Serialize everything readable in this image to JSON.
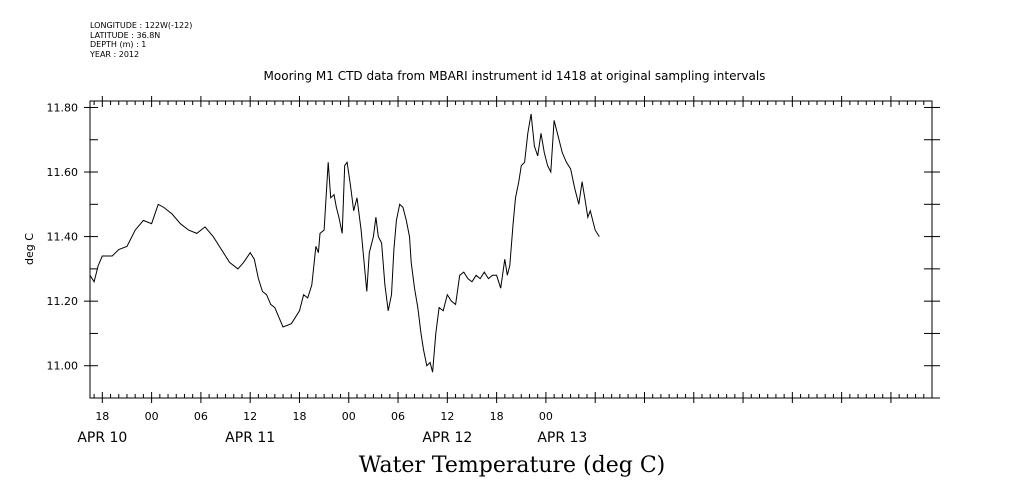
{
  "meta": {
    "longitude": "LONGITUDE : 122W(-122)",
    "latitude": "LATITUDE : 36.8N",
    "depth": "DEPTH (m) : 1",
    "year": "YEAR : 2012"
  },
  "chart_data": {
    "type": "line",
    "title": "Mooring M1 CTD data from MBARI instrument id 1418 at original sampling intervals",
    "ylabel": "deg C",
    "bottom_label": "Water Temperature (deg C)",
    "xlim_hours": [
      -7.5,
      95.0
    ],
    "ylim": [
      10.9,
      11.82
    ],
    "y_ticks": [
      {
        "value": 11.0,
        "label": "11.00"
      },
      {
        "value": 11.2,
        "label": "11.20"
      },
      {
        "value": 11.4,
        "label": "11.40"
      },
      {
        "value": 11.6,
        "label": "11.60"
      },
      {
        "value": 11.8,
        "label": "11.80"
      }
    ],
    "x_ticks": [
      {
        "hour": -6,
        "label": "18"
      },
      {
        "hour": 0,
        "label": "00"
      },
      {
        "hour": 6,
        "label": "06"
      },
      {
        "hour": 12,
        "label": "12"
      },
      {
        "hour": 18,
        "label": "18"
      },
      {
        "hour": 24,
        "label": "00"
      },
      {
        "hour": 30,
        "label": "06"
      },
      {
        "hour": 36,
        "label": "12"
      },
      {
        "hour": 42,
        "label": "18"
      },
      {
        "hour": 48,
        "label": "00"
      }
    ],
    "date_labels": [
      {
        "hour": -6,
        "label": "APR 10"
      },
      {
        "hour": 12,
        "label": "APR 11"
      },
      {
        "hour": 36,
        "label": "APR 12"
      },
      {
        "hour": 50,
        "label": "APR 13"
      }
    ],
    "series": [
      {
        "color": "#000000",
        "x": [
          -7.5,
          -7.0,
          -6.5,
          -6.0,
          -5.5,
          -4.8,
          -4.0,
          -3.0,
          -2.0,
          -1.0,
          0.0,
          0.8,
          1.5,
          2.5,
          3.5,
          4.5,
          5.5,
          6.5,
          7.5,
          8.5,
          9.5,
          10.5,
          11.2,
          12.0,
          12.5,
          13.0,
          13.5,
          14.0,
          14.5,
          15.0,
          15.5,
          16.0,
          17.0,
          17.5,
          18.0,
          18.5,
          19.0,
          19.5,
          20.0,
          20.3,
          20.5,
          21.0,
          21.5,
          21.8,
          22.2,
          22.5,
          22.8,
          23.2,
          23.5,
          23.8,
          24.2,
          24.6,
          25.0,
          25.5,
          25.8,
          26.2,
          26.5,
          27.0,
          27.3,
          27.6,
          28.0,
          28.4,
          28.8,
          29.2,
          29.5,
          29.8,
          30.2,
          30.6,
          31.0,
          31.4,
          31.6,
          32.0,
          32.4,
          32.8,
          33.1,
          33.5,
          33.9,
          34.2,
          34.6,
          35.0,
          35.5,
          36.0,
          36.5,
          37.0,
          37.5,
          38.0,
          38.5,
          39.0,
          39.5,
          40.0,
          40.5,
          41.0,
          41.5,
          42.0,
          42.5,
          43.0,
          43.3,
          43.6,
          44.0,
          44.3,
          44.7,
          45.0,
          45.4,
          45.8,
          46.2,
          46.6,
          47.0,
          47.4,
          47.8,
          48.2,
          48.6,
          49.0,
          49.5,
          50.0,
          50.5,
          51.0,
          51.5,
          52.0,
          52.4,
          52.8,
          53.1,
          53.4,
          53.7,
          54.0,
          54.5
        ],
        "values": [
          11.28,
          11.26,
          11.31,
          11.34,
          11.34,
          11.34,
          11.36,
          11.37,
          11.42,
          11.45,
          11.44,
          11.5,
          11.49,
          11.47,
          11.44,
          11.42,
          11.41,
          11.43,
          11.4,
          11.36,
          11.32,
          11.3,
          11.32,
          11.35,
          11.33,
          11.27,
          11.23,
          11.22,
          11.19,
          11.18,
          11.15,
          11.12,
          11.13,
          11.15,
          11.17,
          11.22,
          11.21,
          11.25,
          11.37,
          11.35,
          11.41,
          11.42,
          11.63,
          11.52,
          11.53,
          11.49,
          11.46,
          11.41,
          11.62,
          11.63,
          11.56,
          11.48,
          11.52,
          11.42,
          11.34,
          11.23,
          11.35,
          11.4,
          11.46,
          11.4,
          11.38,
          11.25,
          11.17,
          11.22,
          11.36,
          11.45,
          11.5,
          11.49,
          11.45,
          11.4,
          11.32,
          11.24,
          11.18,
          11.1,
          11.05,
          11.0,
          11.01,
          10.98,
          11.1,
          11.18,
          11.17,
          11.22,
          11.2,
          11.19,
          11.28,
          11.29,
          11.27,
          11.26,
          11.28,
          11.27,
          11.29,
          11.27,
          11.28,
          11.28,
          11.24,
          11.33,
          11.28,
          11.31,
          11.44,
          11.52,
          11.57,
          11.62,
          11.63,
          11.72,
          11.78,
          11.68,
          11.65,
          11.72,
          11.66,
          11.62,
          11.6,
          11.76,
          11.71,
          11.66,
          11.63,
          11.61,
          11.55,
          11.5,
          11.57,
          11.51,
          11.46,
          11.48,
          11.45,
          11.42,
          11.4
        ]
      }
    ]
  }
}
